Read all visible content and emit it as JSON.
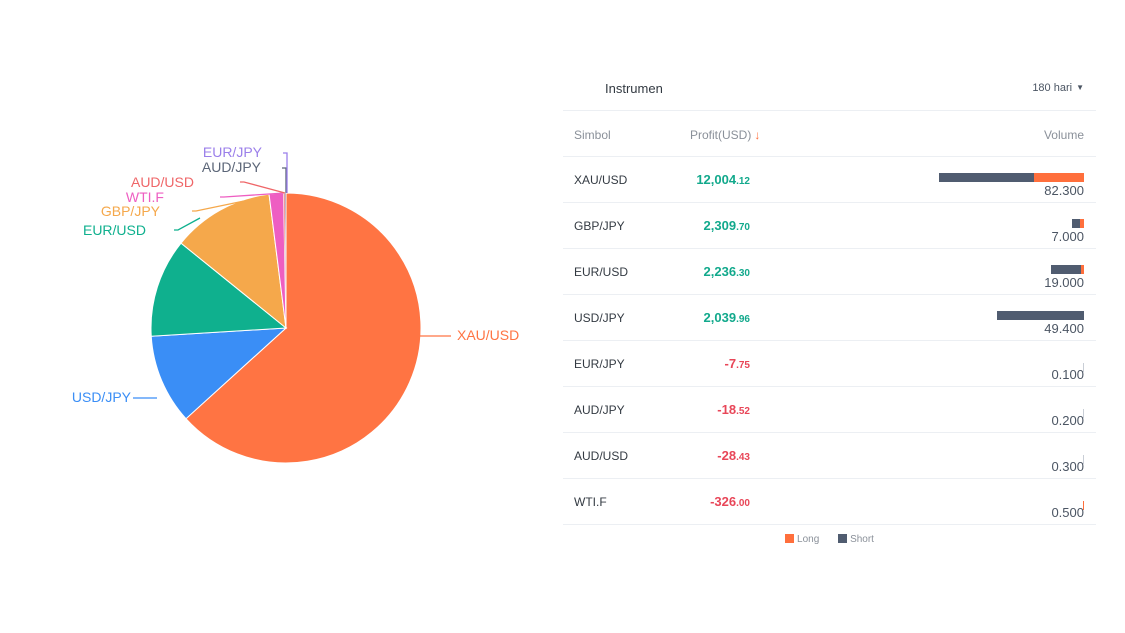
{
  "chart_data": [
    {
      "type": "pie",
      "title": "",
      "slices": [
        {
          "label": "XAU/USD",
          "value": 12004.12,
          "color": "#ff7443"
        },
        {
          "label": "USD/JPY",
          "value": 2039.96,
          "color": "#3a8ef6"
        },
        {
          "label": "EUR/USD",
          "value": 2236.3,
          "color": "#0fb08e"
        },
        {
          "label": "GBP/JPY",
          "value": 2309.7,
          "color": "#f5a84b"
        },
        {
          "label": "WTI.F",
          "value": 326.0,
          "color": "#ee5ec2"
        },
        {
          "label": "AUD/USD",
          "value": 28.43,
          "color": "#ef6668"
        },
        {
          "label": "AUD/JPY",
          "value": 18.52,
          "color": "#5c6678"
        },
        {
          "label": "EUR/JPY",
          "value": 7.75,
          "color": "#9b7fea"
        }
      ],
      "legend_position": "outside-labels"
    },
    {
      "type": "table",
      "columns": [
        "Simbol",
        "Profit(USD)",
        "Volume"
      ],
      "series": [
        {
          "name": "Long",
          "color": "#ff6f3c"
        },
        {
          "name": "Short",
          "color": "#505c70"
        }
      ]
    }
  ],
  "panel": {
    "title": "Instrumen",
    "period": "180 hari",
    "headers": {
      "symbol": "Simbol",
      "profit": "Profit(USD)",
      "sort_arrow": "↓",
      "volume": "Volume"
    },
    "rows": [
      {
        "symbol": "XAU/USD",
        "profit_int": "12,004",
        "profit_dec": ".12",
        "sign": "pos",
        "volume": "82.300",
        "short": 53.7,
        "long": 28.6
      },
      {
        "symbol": "GBP/JPY",
        "profit_int": "2,309",
        "profit_dec": ".70",
        "sign": "pos",
        "volume": "7.000",
        "short": 4.8,
        "long": 2.2
      },
      {
        "symbol": "EUR/USD",
        "profit_int": "2,236",
        "profit_dec": ".30",
        "sign": "pos",
        "volume": "19.000",
        "short": 17.2,
        "long": 1.8
      },
      {
        "symbol": "USD/JPY",
        "profit_int": "2,039",
        "profit_dec": ".96",
        "sign": "pos",
        "volume": "49.400",
        "short": 49.4,
        "long": 0
      },
      {
        "symbol": "EUR/JPY",
        "profit_int": "-7",
        "profit_dec": ".75",
        "sign": "neg",
        "volume": "0.100",
        "short": 0.1,
        "long": 0
      },
      {
        "symbol": "AUD/JPY",
        "profit_int": "-18",
        "profit_dec": ".52",
        "sign": "neg",
        "volume": "0.200",
        "short": 0.2,
        "long": 0
      },
      {
        "symbol": "AUD/USD",
        "profit_int": "-28",
        "profit_dec": ".43",
        "sign": "neg",
        "volume": "0.300",
        "short": 0.3,
        "long": 0
      },
      {
        "symbol": "WTI.F",
        "profit_int": "-326",
        "profit_dec": ".00",
        "sign": "neg",
        "volume": "0.500",
        "short": 0,
        "long": 0.5
      }
    ],
    "legend": [
      {
        "label": "Long",
        "color": "#ff6f3c"
      },
      {
        "label": "Short",
        "color": "#505c70"
      }
    ]
  }
}
